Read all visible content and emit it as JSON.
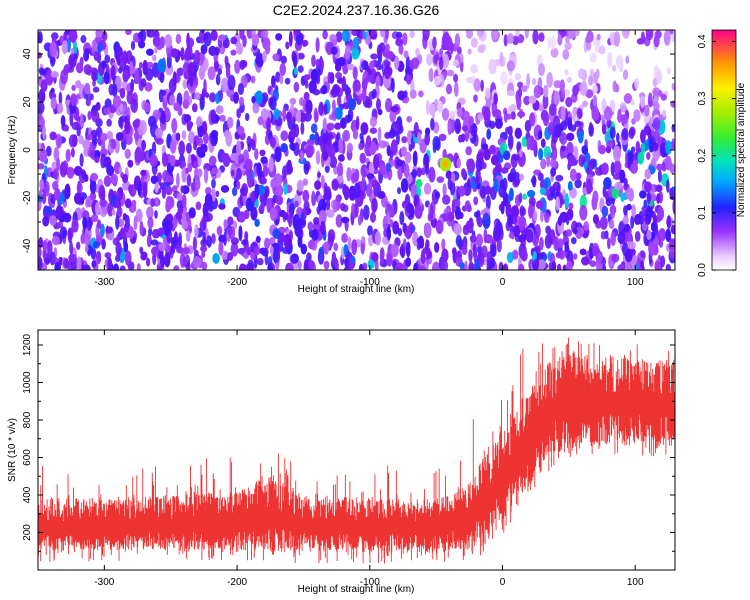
{
  "title": "C2E2.2024.237.16.36.G26",
  "chart_data": [
    {
      "type": "heatmap",
      "xlabel": "Height of straight line (km)",
      "ylabel": "Frequency (Hz)",
      "xlim": [
        -350,
        130
      ],
      "ylim": [
        -50,
        50
      ],
      "xticks": [
        -300,
        -200,
        -100,
        0,
        100
      ],
      "yticks": [
        -40,
        -20,
        0,
        20,
        40
      ],
      "colorbar": {
        "label": "Normalized spectral amplitude",
        "range": [
          0.0,
          0.42
        ],
        "ticks": [
          "0.0",
          "0.1",
          "0.2",
          "0.3",
          "0.4"
        ]
      },
      "features": {
        "peak": {
          "x": -43,
          "y": -6,
          "value": 0.3
        },
        "dense_band": {
          "x_range": [
            -70,
            130
          ],
          "y_range": [
            -25,
            10
          ]
        },
        "empty_region": {
          "x_range": [
            -30,
            130
          ],
          "y_range": [
            28,
            45
          ]
        }
      }
    },
    {
      "type": "line",
      "color": "#ee3333",
      "xlabel": "Height of straight line (km)",
      "ylabel": "SNR (10 * v/v)",
      "xlim": [
        -350,
        130
      ],
      "ylim": [
        0,
        1280
      ],
      "xticks": [
        -300,
        -200,
        -100,
        0,
        100
      ],
      "yticks": [
        200,
        400,
        600,
        800,
        1000,
        1200
      ],
      "envelope": {
        "x": [
          -350,
          -300,
          -250,
          -200,
          -175,
          -150,
          -100,
          -50,
          -30,
          -15,
          0,
          15,
          30,
          45,
          60,
          80,
          100,
          130
        ],
        "lower": [
          100,
          105,
          110,
          105,
          100,
          95,
          95,
          90,
          100,
          140,
          230,
          390,
          560,
          640,
          660,
          670,
          670,
          660
        ],
        "upper": [
          380,
          390,
          400,
          420,
          520,
          400,
          390,
          380,
          460,
          600,
          800,
          930,
          1080,
          1180,
          1150,
          1140,
          1130,
          1120
        ],
        "spike_max": [
          560,
          520,
          580,
          620,
          640,
          600,
          560,
          560,
          760,
          900,
          1000,
          1180,
          1240,
          1270,
          1230,
          1200,
          1220,
          1230
        ]
      }
    }
  ]
}
